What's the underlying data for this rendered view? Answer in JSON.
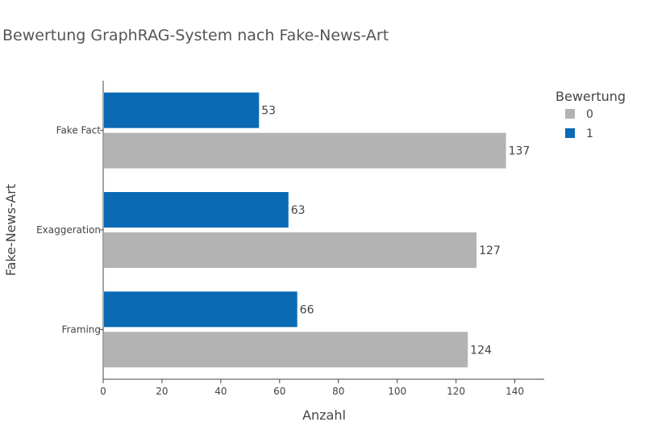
{
  "chart_data": {
    "type": "bar",
    "orientation": "horizontal",
    "title": "Bewertung GraphRAG-System nach Fake-News-Art",
    "xlabel": "Anzahl",
    "ylabel": "Fake-News-Art",
    "categories": [
      "Fake Fact",
      "Exaggeration",
      "Framing"
    ],
    "series": [
      {
        "name": "1",
        "color": "#0a6ab3",
        "values": [
          53,
          63,
          66
        ]
      },
      {
        "name": "0",
        "color": "#b3b3b3",
        "values": [
          137,
          127,
          124
        ]
      }
    ],
    "xlim": [
      0,
      150
    ],
    "xticks": [
      0,
      20,
      40,
      60,
      80,
      100,
      120,
      140
    ],
    "grid": false,
    "legend": {
      "title": "Bewertung",
      "placement": "top-right",
      "items": [
        {
          "label": "0",
          "color": "#b3b3b3"
        },
        {
          "label": "1",
          "color": "#0a6ab3"
        }
      ]
    }
  }
}
